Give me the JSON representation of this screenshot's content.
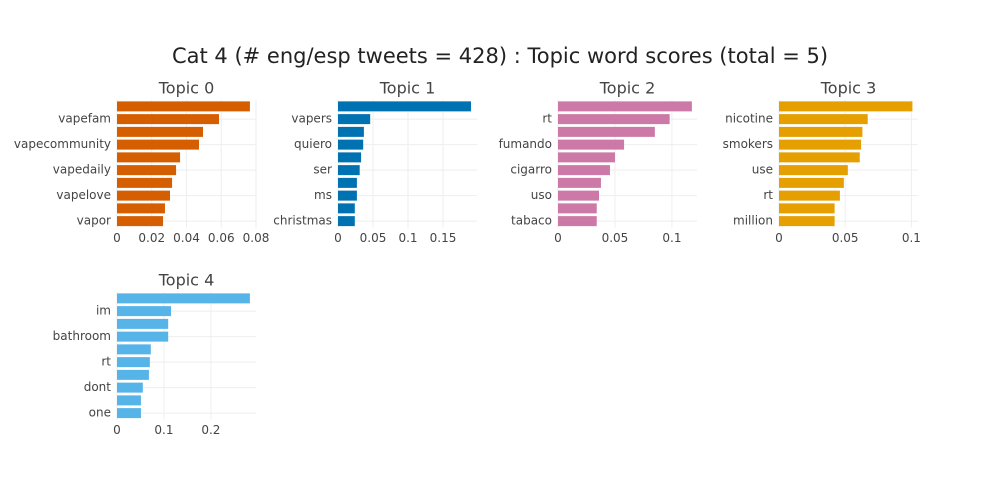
{
  "title": "Cat 4 (# eng/esp tweets = 428) : Topic word scores (total = 5)",
  "chart_data": [
    {
      "type": "bar",
      "orientation": "h",
      "title": "Topic 0",
      "color": "#D55E00",
      "categories": [
        null,
        "vapefam",
        null,
        "vapecommunity",
        null,
        "vapedaily",
        null,
        "vapelove",
        null,
        "vapor"
      ],
      "values": [
        0.0765,
        0.0587,
        0.0495,
        0.0472,
        0.0363,
        0.034,
        0.0317,
        0.0305,
        0.0276,
        0.0265
      ],
      "xlim": [
        0,
        0.08
      ],
      "xticks": [
        0,
        0.02,
        0.04,
        0.06,
        0.08
      ],
      "grid": true
    },
    {
      "type": "bar",
      "orientation": "h",
      "title": "Topic 1",
      "color": "#0072B2",
      "categories": [
        null,
        "vapers",
        null,
        "quiero",
        null,
        "ser",
        null,
        "ms",
        null,
        "christmas"
      ],
      "values": [
        0.19,
        0.046,
        0.037,
        0.036,
        0.033,
        0.031,
        0.027,
        0.027,
        0.024,
        0.024
      ],
      "xlim": [
        0,
        0.1986
      ],
      "xticks": [
        0,
        0.05,
        0.1,
        0.15
      ],
      "grid": true
    },
    {
      "type": "bar",
      "orientation": "h",
      "title": "Topic 2",
      "color": "#CC79A7",
      "categories": [
        null,
        "rt",
        null,
        "fumando",
        null,
        "cigarro",
        null,
        "uso",
        null,
        "tabaco"
      ],
      "values": [
        0.1175,
        0.098,
        0.085,
        0.058,
        0.05,
        0.0456,
        0.0377,
        0.036,
        0.034,
        0.034
      ],
      "xlim": [
        0,
        0.122
      ],
      "xticks": [
        0,
        0.05,
        0.1
      ],
      "grid": true
    },
    {
      "type": "bar",
      "orientation": "h",
      "title": "Topic 3",
      "color": "#E69F00",
      "categories": [
        null,
        "nicotine",
        null,
        "smokers",
        null,
        "use",
        null,
        "rt",
        null,
        "million"
      ],
      "values": [
        0.1008,
        0.067,
        0.063,
        0.062,
        0.061,
        0.052,
        0.049,
        0.046,
        0.042,
        0.042
      ],
      "xlim": [
        0,
        0.105
      ],
      "xticks": [
        0,
        0.05,
        0.1
      ],
      "grid": true
    },
    {
      "type": "bar",
      "orientation": "h",
      "title": "Topic 4",
      "color": "#56B4E9",
      "categories": [
        null,
        "im",
        null,
        "bathroom",
        null,
        "rt",
        null,
        "dont",
        null,
        "one"
      ],
      "values": [
        0.283,
        0.115,
        0.109,
        0.109,
        0.072,
        0.07,
        0.068,
        0.055,
        0.051,
        0.051
      ],
      "xlim": [
        0,
        0.296
      ],
      "xticks": [
        0,
        0.1,
        0.2
      ],
      "grid": true
    }
  ]
}
